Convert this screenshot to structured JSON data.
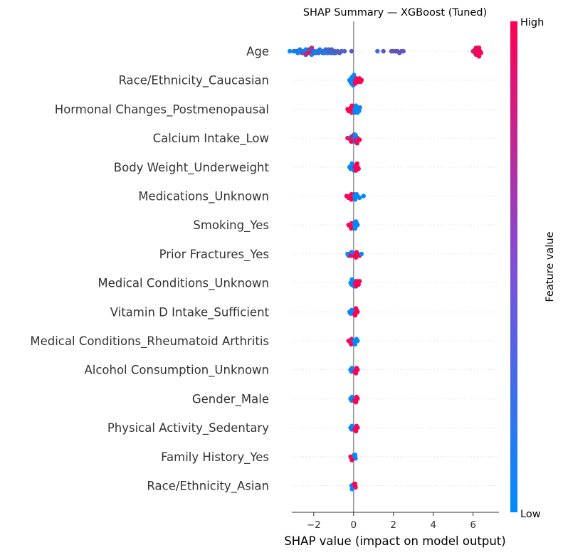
{
  "chart_data": {
    "type": "scatter",
    "subtype": "shap-beeswarm",
    "title": "SHAP Summary — XGBoost (Tuned)",
    "xlabel": "SHAP value (impact on model output)",
    "xlim": [
      -3.1,
      7.3
    ],
    "xticks": [
      -2,
      0,
      2,
      4,
      6
    ],
    "xtick_labels": [
      "−2",
      "0",
      "2",
      "4",
      "6"
    ],
    "colorbar": {
      "label": "Feature value",
      "high_label": "High",
      "low_label": "Low",
      "low_color": "#008bfb",
      "high_color": "#ff0052"
    },
    "zero_line_color": "#999999",
    "features": [
      {
        "name": "Age",
        "points": [
          [
            -3.2,
            0.0
          ],
          [
            -3.0,
            0.15
          ],
          [
            -2.9,
            0.05
          ],
          [
            -2.8,
            0.3
          ],
          [
            -2.8,
            0.1
          ],
          [
            -2.7,
            0.1
          ],
          [
            -2.6,
            0.05
          ],
          [
            -2.6,
            0.2
          ],
          [
            -2.5,
            0.02
          ],
          [
            -2.5,
            0.35
          ],
          [
            -2.4,
            0.05
          ],
          [
            -2.4,
            0.6
          ],
          [
            -2.3,
            0.1
          ],
          [
            -2.3,
            0.8
          ],
          [
            -2.25,
            0.5
          ],
          [
            -2.2,
            0.15
          ],
          [
            -2.2,
            0.9
          ],
          [
            -2.15,
            0.4
          ],
          [
            -2.1,
            0.1
          ],
          [
            -2.1,
            0.7
          ],
          [
            -2.0,
            0.05
          ],
          [
            -2.0,
            0.3
          ],
          [
            -1.95,
            0.12
          ],
          [
            -1.9,
            0.1
          ],
          [
            -1.8,
            0.08
          ],
          [
            -1.75,
            0.2
          ],
          [
            -1.7,
            0.15
          ],
          [
            -1.6,
            0.1
          ],
          [
            -1.55,
            0.18
          ],
          [
            -1.5,
            0.25
          ],
          [
            -1.45,
            0.1
          ],
          [
            -1.4,
            0.3
          ],
          [
            -1.35,
            0.2
          ],
          [
            -1.3,
            0.15
          ],
          [
            -1.25,
            0.25
          ],
          [
            -1.2,
            0.3
          ],
          [
            -1.15,
            0.2
          ],
          [
            -1.1,
            0.35
          ],
          [
            -1.05,
            0.25
          ],
          [
            -1.0,
            0.2
          ],
          [
            -0.95,
            0.35
          ],
          [
            -0.9,
            0.3
          ],
          [
            -0.8,
            0.3
          ],
          [
            -0.7,
            0.35
          ],
          [
            -0.6,
            0.3
          ],
          [
            -0.45,
            0.32
          ],
          [
            -0.1,
            0.35
          ],
          [
            1.2,
            0.2
          ],
          [
            1.5,
            0.35
          ],
          [
            1.9,
            0.4
          ],
          [
            2.0,
            0.35
          ],
          [
            2.1,
            0.35
          ],
          [
            2.2,
            0.4
          ],
          [
            2.3,
            0.35
          ],
          [
            2.4,
            0.38
          ],
          [
            2.5,
            0.35
          ],
          [
            6.0,
            0.75
          ],
          [
            6.05,
            0.8
          ],
          [
            6.1,
            0.82
          ],
          [
            6.1,
            0.85
          ],
          [
            6.15,
            0.88
          ],
          [
            6.15,
            0.9
          ],
          [
            6.2,
            0.92
          ],
          [
            6.2,
            0.95
          ],
          [
            6.25,
            0.96
          ],
          [
            6.25,
            0.98
          ],
          [
            6.3,
            0.99
          ],
          [
            6.3,
            1.0
          ],
          [
            6.35,
            0.97
          ],
          [
            6.4,
            0.95
          ]
        ]
      },
      {
        "name": "Race/Ethnicity_Caucasian",
        "points": [
          [
            -0.2,
            0.0
          ],
          [
            -0.15,
            0.05
          ],
          [
            -0.12,
            0.0
          ],
          [
            -0.1,
            0.1
          ],
          [
            -0.08,
            0.02
          ],
          [
            -0.05,
            0.0
          ],
          [
            -0.03,
            0.05
          ],
          [
            0.0,
            0.0
          ],
          [
            0.05,
            0.4
          ],
          [
            0.1,
            0.9
          ],
          [
            0.15,
            0.95
          ],
          [
            0.2,
            0.97
          ],
          [
            0.25,
            1.0
          ],
          [
            0.3,
            0.98
          ],
          [
            0.4,
            0.95
          ],
          [
            -0.06,
            0.0
          ],
          [
            -0.02,
            0.03
          ],
          [
            0.02,
            0.05
          ],
          [
            0.08,
            0.95
          ],
          [
            0.35,
            0.96
          ]
        ]
      },
      {
        "name": "Hormonal Changes_Postmenopausal",
        "points": [
          [
            -0.3,
            1.0
          ],
          [
            -0.25,
            0.95
          ],
          [
            -0.2,
            0.98
          ],
          [
            -0.15,
            1.0
          ],
          [
            -0.12,
            0.97
          ],
          [
            -0.1,
            0.9
          ],
          [
            -0.06,
            0.95
          ],
          [
            -0.03,
            1.0
          ],
          [
            0.0,
            0.6
          ],
          [
            0.03,
            0.3
          ],
          [
            0.06,
            0.0
          ],
          [
            0.1,
            0.05
          ],
          [
            0.14,
            0.0
          ],
          [
            0.18,
            0.02
          ],
          [
            0.22,
            0.05
          ],
          [
            0.28,
            0.0
          ],
          [
            0.32,
            0.1
          ],
          [
            -0.08,
            0.98
          ],
          [
            0.12,
            0.0
          ],
          [
            0.2,
            0.0
          ]
        ]
      },
      {
        "name": "Calcium Intake_Low",
        "points": [
          [
            -0.3,
            0.95
          ],
          [
            -0.2,
            0.5
          ],
          [
            -0.15,
            0.98
          ],
          [
            -0.1,
            0.0
          ],
          [
            -0.08,
            0.9
          ],
          [
            -0.05,
            0.3
          ],
          [
            -0.02,
            0.98
          ],
          [
            0.0,
            0.05
          ],
          [
            0.03,
            0.95
          ],
          [
            0.06,
            0.1
          ],
          [
            0.1,
            0.98
          ],
          [
            0.12,
            0.0
          ],
          [
            0.15,
            0.9
          ],
          [
            0.2,
            0.4
          ],
          [
            0.3,
            0.98
          ],
          [
            -0.12,
            0.95
          ],
          [
            0.08,
            0.0
          ],
          [
            0.18,
            0.95
          ]
        ]
      },
      {
        "name": "Body Weight_Underweight",
        "points": [
          [
            -0.2,
            0.0
          ],
          [
            -0.15,
            0.05
          ],
          [
            -0.1,
            0.0
          ],
          [
            -0.06,
            0.1
          ],
          [
            -0.03,
            0.0
          ],
          [
            0.0,
            0.05
          ],
          [
            0.03,
            0.0
          ],
          [
            0.06,
            0.9
          ],
          [
            0.1,
            0.95
          ],
          [
            0.15,
            1.0
          ],
          [
            0.2,
            0.98
          ],
          [
            0.25,
            0.95
          ],
          [
            -0.08,
            0.02
          ],
          [
            0.12,
            0.97
          ],
          [
            0.18,
            1.0
          ]
        ]
      },
      {
        "name": "Medications_Unknown",
        "points": [
          [
            -0.35,
            0.95
          ],
          [
            -0.25,
            1.0
          ],
          [
            -0.2,
            0.98
          ],
          [
            -0.15,
            0.9
          ],
          [
            -0.1,
            1.0
          ],
          [
            -0.06,
            0.95
          ],
          [
            -0.02,
            0.98
          ],
          [
            0.02,
            0.6
          ],
          [
            0.05,
            0.05
          ],
          [
            0.1,
            0.0
          ],
          [
            0.15,
            0.05
          ],
          [
            0.2,
            0.0
          ],
          [
            0.3,
            0.1
          ],
          [
            0.5,
            0.0
          ],
          [
            -0.12,
            0.97
          ],
          [
            0.08,
            0.0
          ]
        ]
      },
      {
        "name": "Smoking_Yes",
        "points": [
          [
            -0.25,
            0.95
          ],
          [
            -0.2,
            1.0
          ],
          [
            -0.15,
            0.98
          ],
          [
            -0.1,
            0.95
          ],
          [
            -0.06,
            1.0
          ],
          [
            -0.02,
            0.97
          ],
          [
            0.0,
            0.5
          ],
          [
            0.03,
            0.05
          ],
          [
            0.06,
            0.0
          ],
          [
            0.1,
            0.05
          ],
          [
            0.15,
            0.0
          ],
          [
            0.2,
            0.02
          ],
          [
            -0.12,
            0.98
          ],
          [
            0.08,
            0.0
          ],
          [
            0.12,
            0.05
          ]
        ]
      },
      {
        "name": "Prior Fractures_Yes",
        "points": [
          [
            -0.3,
            0.05
          ],
          [
            -0.25,
            0.0
          ],
          [
            -0.2,
            0.1
          ],
          [
            -0.15,
            0.95
          ],
          [
            -0.1,
            1.0
          ],
          [
            -0.05,
            0.98
          ],
          [
            0.0,
            0.95
          ],
          [
            0.05,
            1.0
          ],
          [
            0.1,
            0.97
          ],
          [
            0.15,
            0.95
          ],
          [
            0.2,
            0.98
          ],
          [
            0.3,
            0.9
          ],
          [
            0.4,
            0.0
          ],
          [
            -0.08,
            0.05
          ],
          [
            0.12,
            1.0
          ]
        ]
      },
      {
        "name": "Medical Conditions_Unknown",
        "points": [
          [
            -0.15,
            0.0
          ],
          [
            -0.1,
            0.05
          ],
          [
            -0.06,
            0.0
          ],
          [
            -0.03,
            0.1
          ],
          [
            0.0,
            0.02
          ],
          [
            0.03,
            0.0
          ],
          [
            0.06,
            0.6
          ],
          [
            0.1,
            0.9
          ],
          [
            0.15,
            0.95
          ],
          [
            0.2,
            1.0
          ],
          [
            0.25,
            0.97
          ],
          [
            0.3,
            0.95
          ],
          [
            0.12,
            0.98
          ],
          [
            -0.08,
            0.0
          ]
        ]
      },
      {
        "name": "Vitamin D Intake_Sufficient",
        "points": [
          [
            -0.2,
            0.0
          ],
          [
            -0.15,
            0.05
          ],
          [
            -0.1,
            0.0
          ],
          [
            -0.05,
            0.1
          ],
          [
            0.0,
            0.5
          ],
          [
            0.05,
            0.9
          ],
          [
            0.1,
            0.95
          ],
          [
            0.15,
            1.0
          ],
          [
            0.2,
            0.97
          ],
          [
            -0.08,
            0.02
          ],
          [
            0.08,
            0.98
          ],
          [
            0.12,
            0.95
          ]
        ]
      },
      {
        "name": "Medical Conditions_Rheumatoid Arthritis",
        "points": [
          [
            -0.25,
            0.95
          ],
          [
            -0.2,
            1.0
          ],
          [
            -0.15,
            0.98
          ],
          [
            -0.1,
            0.9
          ],
          [
            -0.05,
            0.6
          ],
          [
            0.0,
            0.05
          ],
          [
            0.05,
            0.0
          ],
          [
            0.1,
            0.05
          ],
          [
            0.15,
            0.0
          ],
          [
            0.2,
            0.02
          ],
          [
            -0.12,
            0.97
          ],
          [
            0.08,
            0.0
          ]
        ]
      },
      {
        "name": "Alcohol Consumption_Unknown",
        "points": [
          [
            -0.15,
            0.0
          ],
          [
            -0.1,
            0.05
          ],
          [
            -0.05,
            0.0
          ],
          [
            0.0,
            0.5
          ],
          [
            0.05,
            0.95
          ],
          [
            0.1,
            1.0
          ],
          [
            0.15,
            0.97
          ],
          [
            0.2,
            0.95
          ],
          [
            -0.08,
            0.02
          ],
          [
            0.12,
            0.98
          ]
        ]
      },
      {
        "name": "Gender_Male",
        "points": [
          [
            -0.15,
            0.0
          ],
          [
            -0.1,
            0.05
          ],
          [
            -0.05,
            0.0
          ],
          [
            0.0,
            0.6
          ],
          [
            0.05,
            0.95
          ],
          [
            0.1,
            1.0
          ],
          [
            0.15,
            0.97
          ],
          [
            0.2,
            0.95
          ],
          [
            -0.08,
            0.02
          ],
          [
            0.12,
            0.98
          ]
        ]
      },
      {
        "name": "Physical Activity_Sedentary",
        "points": [
          [
            -0.15,
            0.0
          ],
          [
            -0.1,
            0.05
          ],
          [
            -0.05,
            0.0
          ],
          [
            0.0,
            0.4
          ],
          [
            0.05,
            0.95
          ],
          [
            0.1,
            1.0
          ],
          [
            0.15,
            0.97
          ],
          [
            0.2,
            0.9
          ],
          [
            -0.08,
            0.02
          ],
          [
            0.12,
            0.98
          ]
        ]
      },
      {
        "name": "Family History_Yes",
        "points": [
          [
            -0.15,
            0.95
          ],
          [
            -0.1,
            1.0
          ],
          [
            -0.05,
            0.97
          ],
          [
            0.0,
            0.5
          ],
          [
            0.03,
            0.05
          ],
          [
            0.06,
            0.0
          ],
          [
            0.1,
            0.05
          ],
          [
            -0.08,
            0.98
          ],
          [
            0.08,
            0.0
          ]
        ]
      },
      {
        "name": "Race/Ethnicity_Asian",
        "points": [
          [
            -0.1,
            0.0
          ],
          [
            -0.05,
            0.05
          ],
          [
            0.0,
            0.0
          ],
          [
            0.03,
            0.9
          ],
          [
            0.06,
            0.95
          ],
          [
            0.1,
            1.0
          ],
          [
            -0.08,
            0.02
          ],
          [
            0.08,
            0.97
          ]
        ]
      }
    ]
  }
}
